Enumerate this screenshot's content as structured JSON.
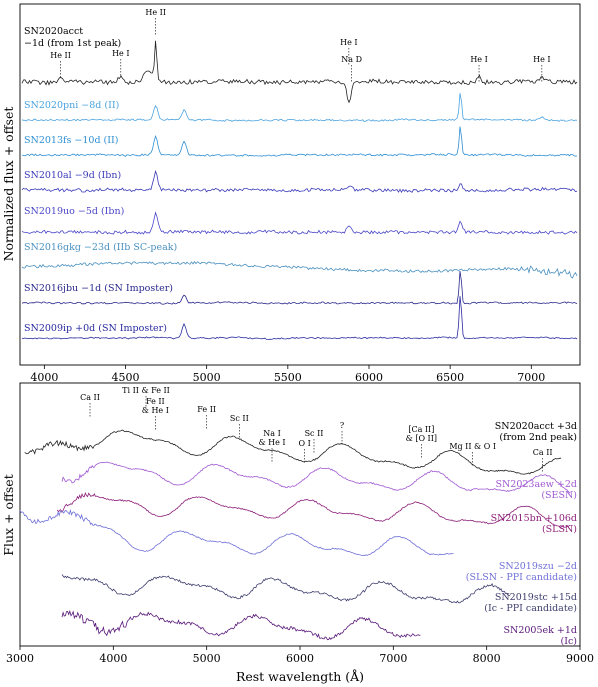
{
  "chart_data": [
    {
      "type": "line",
      "panel": "top",
      "xlim": [
        3850,
        7300
      ],
      "xticks": [
        4000,
        4500,
        5000,
        5500,
        6000,
        6500,
        7000
      ],
      "xlabel": "",
      "ylabel": "Normalized flux + offset",
      "series": [
        {
          "name": "SN2020acct",
          "label": "SN2020acct\n−1d (from 1st peak)",
          "color": "#222222",
          "peaks": [
            [
              4100,
              6
            ],
            [
              4471,
              5
            ],
            [
              4686,
              40
            ],
            [
              5876,
              -20
            ],
            [
              6678,
              6
            ],
            [
              7065,
              5
            ]
          ]
        },
        {
          "name": "SN2020pni",
          "label": "SN2020pni −8d (II)",
          "color": "#4aa3df",
          "peaks": [
            [
              4686,
              14
            ],
            [
              4861,
              10
            ],
            [
              6563,
              28
            ],
            [
              7065,
              3
            ]
          ]
        },
        {
          "name": "SN2013fs",
          "label": "SN2013fs −10d (II)",
          "color": "#2e8fd4",
          "peaks": [
            [
              4686,
              18
            ],
            [
              4861,
              14
            ],
            [
              6563,
              30
            ]
          ]
        },
        {
          "name": "SN2010al",
          "label": "SN2010al −9d (Ibn)",
          "color": "#3a3ab8",
          "peaks": [
            [
              4686,
              18
            ],
            [
              5876,
              4
            ],
            [
              6563,
              6
            ]
          ]
        },
        {
          "name": "SN2019uo",
          "label": "SN2019uo −5d (Ibn)",
          "color": "#4a46c8",
          "peaks": [
            [
              4686,
              20
            ],
            [
              5876,
              5
            ],
            [
              6563,
              12
            ]
          ]
        },
        {
          "name": "SN2016gkg",
          "label": "SN2016gkg −23d (IIb SC-peak)",
          "color": "#4a90c0",
          "peaks": []
        },
        {
          "name": "SN2016jbu",
          "label": "SN2016jbu −1d (SN Imposter)",
          "color": "#28288c",
          "peaks": [
            [
              4861,
              8
            ],
            [
              6563,
              34
            ]
          ]
        },
        {
          "name": "SN2009ip",
          "label": "SN2009ip +0d (SN Imposter)",
          "color": "#2a2aa0",
          "peaks": [
            [
              4861,
              14
            ],
            [
              6563,
              44
            ]
          ]
        }
      ],
      "annotations": [
        {
          "text": "He II",
          "x": 4100
        },
        {
          "text": "He I",
          "x": 4471
        },
        {
          "text": "He II",
          "x": 4686
        },
        {
          "text": "He I",
          "x": 5876
        },
        {
          "text": "Na D",
          "x": 5893
        },
        {
          "text": "He I",
          "x": 6678
        },
        {
          "text": "He I",
          "x": 7065
        }
      ]
    },
    {
      "type": "line",
      "panel": "bottom",
      "xlim": [
        3000,
        9000
      ],
      "xticks": [
        3000,
        4000,
        5000,
        6000,
        7000,
        8000,
        9000
      ],
      "xlabel": "Rest wavelength (Å)",
      "ylabel": "Flux + offset",
      "series": [
        {
          "name": "SN2020acct",
          "label": "SN2020acct +3d\n(from 2nd peak)",
          "color": "#222222",
          "range": [
            3050,
            8800
          ]
        },
        {
          "name": "SN2023aew",
          "label": "SN2023aew +2d\n(SESN)",
          "color": "#a05ad2",
          "range": [
            3450,
            8900
          ]
        },
        {
          "name": "SN2015bn",
          "label": "SN2015bn +106d\n(SLSN)",
          "color": "#8c1e78",
          "range": [
            3400,
            8900
          ]
        },
        {
          "name": "SN2019szu",
          "label": "SN2019szu −2d\n(SLSN - PPI candidate)",
          "color": "#7070d8",
          "range": [
            3000,
            7650
          ]
        },
        {
          "name": "SN2019stc",
          "label": "SN2019stc +15d\n(Ic - PPI candidate)",
          "color": "#3e3e6e",
          "range": [
            3450,
            8250
          ]
        },
        {
          "name": "SN2005ek",
          "label": "SN2005ek +1d\n(Ic)",
          "color": "#5a1a7a",
          "range": [
            3450,
            7300
          ]
        }
      ],
      "annotations": [
        {
          "text": "Ca II",
          "x": 3750
        },
        {
          "text": "Ti II & Fe II",
          "x": 4350
        },
        {
          "text": "Fe II\n& He I",
          "x": 4450
        },
        {
          "text": "Fe II",
          "x": 5000
        },
        {
          "text": "Sc II",
          "x": 5350
        },
        {
          "text": "Na I\n& He I",
          "x": 5700
        },
        {
          "text": "O I",
          "x": 6050
        },
        {
          "text": "Sc II",
          "x": 6150
        },
        {
          "text": "?",
          "x": 6450
        },
        {
          "text": "[Ca II]\n& [O II]",
          "x": 7300
        },
        {
          "text": "Mg II & O I",
          "x": 7850
        },
        {
          "text": "Ca II",
          "x": 8600
        }
      ]
    }
  ]
}
